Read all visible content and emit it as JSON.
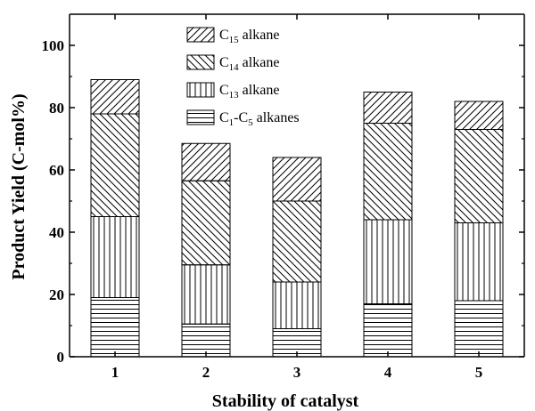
{
  "chart_data": {
    "type": "bar",
    "stacked": true,
    "categories": [
      "1",
      "2",
      "3",
      "4",
      "5"
    ],
    "xlabel": "Stability of catalyst",
    "ylabel": "Product Yield (C-mol%)",
    "ylim": [
      0,
      110
    ],
    "yticks": [
      0,
      20,
      40,
      60,
      80,
      100
    ],
    "grid": false,
    "legend_position": "top-center",
    "series": [
      {
        "name": "C1-C5 alkanes",
        "legend": {
          "parts": [
            "C",
            "1",
            "-C",
            "5",
            " alkanes"
          ]
        },
        "pattern": "horizontal",
        "values": [
          19,
          10.5,
          9,
          17,
          18
        ]
      },
      {
        "name": "C13 alkane",
        "legend": {
          "parts": [
            "C",
            "13",
            " alkane"
          ]
        },
        "pattern": "vertical",
        "values": [
          26,
          19,
          15,
          27,
          25
        ]
      },
      {
        "name": "C14 alkane",
        "legend": {
          "parts": [
            "C",
            "14",
            " alkane"
          ]
        },
        "pattern": "backslash",
        "values": [
          33,
          27,
          26,
          31,
          30
        ]
      },
      {
        "name": "C15 alkane",
        "legend": {
          "parts": [
            "C",
            "15",
            " alkane"
          ]
        },
        "pattern": "slash",
        "values": [
          11,
          12,
          14,
          10,
          9
        ]
      }
    ]
  }
}
